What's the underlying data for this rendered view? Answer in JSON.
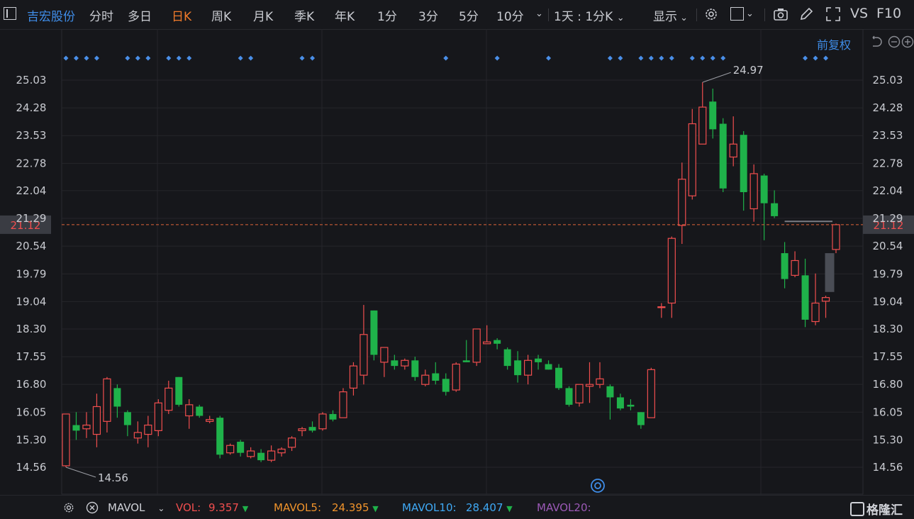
{
  "toolbar": {
    "stock_name": "吉宏股份",
    "tabs": [
      "分时",
      "多日",
      "日K",
      "周K",
      "月K",
      "季K",
      "年K",
      "1分",
      "3分",
      "5分",
      "10分"
    ],
    "active_tab": "日K",
    "period_select": "1天 : 1分K",
    "display_label": "显示",
    "vs_label": "VS",
    "f10_label": "F10"
  },
  "chart_header": {
    "adjust_label": "前复权"
  },
  "chart_data": {
    "type": "candlestick",
    "y_ticks": [
      25.03,
      24.28,
      23.53,
      22.78,
      22.04,
      21.29,
      20.54,
      19.79,
      19.04,
      18.3,
      17.55,
      16.8,
      16.05,
      15.3,
      14.56
    ],
    "y_tick_labels": [
      "25.03",
      "24.28",
      "23.53",
      "22.78",
      "22.04",
      "21.29",
      "20.54",
      "19.79",
      "19.04",
      "18.30",
      "17.55",
      "16.80",
      "16.05",
      "15.30",
      "14.56"
    ],
    "ylim": [
      14.25,
      25.6
    ],
    "current_price": 21.12,
    "current_price_label": "21.12",
    "max_label": "24.97",
    "min_label": "14.56",
    "candles": [
      {
        "o": 14.6,
        "h": 16.0,
        "l": 14.56,
        "c": 16.0
      },
      {
        "o": 15.7,
        "h": 16.05,
        "l": 15.3,
        "c": 15.55
      },
      {
        "o": 15.6,
        "h": 16.05,
        "l": 15.35,
        "c": 15.7
      },
      {
        "o": 15.45,
        "h": 16.55,
        "l": 15.1,
        "c": 16.2
      },
      {
        "o": 15.8,
        "h": 17.0,
        "l": 15.5,
        "c": 16.95
      },
      {
        "o": 16.7,
        "h": 16.8,
        "l": 15.9,
        "c": 16.2
      },
      {
        "o": 16.05,
        "h": 16.1,
        "l": 15.4,
        "c": 15.7
      },
      {
        "o": 15.35,
        "h": 15.8,
        "l": 15.2,
        "c": 15.5
      },
      {
        "o": 15.45,
        "h": 15.95,
        "l": 15.1,
        "c": 15.7
      },
      {
        "o": 15.55,
        "h": 16.4,
        "l": 15.4,
        "c": 16.3
      },
      {
        "o": 16.1,
        "h": 16.9,
        "l": 16.0,
        "c": 16.7
      },
      {
        "o": 17.0,
        "h": 17.0,
        "l": 16.2,
        "c": 16.25
      },
      {
        "o": 15.95,
        "h": 16.4,
        "l": 15.6,
        "c": 16.25
      },
      {
        "o": 16.2,
        "h": 16.25,
        "l": 15.9,
        "c": 15.95
      },
      {
        "o": 15.8,
        "h": 15.95,
        "l": 15.75,
        "c": 15.85
      },
      {
        "o": 15.9,
        "h": 15.95,
        "l": 14.8,
        "c": 14.9
      },
      {
        "o": 14.95,
        "h": 15.2,
        "l": 14.9,
        "c": 15.15
      },
      {
        "o": 15.25,
        "h": 15.3,
        "l": 14.85,
        "c": 14.95
      },
      {
        "o": 14.85,
        "h": 15.1,
        "l": 14.8,
        "c": 15.0
      },
      {
        "o": 14.95,
        "h": 15.05,
        "l": 14.7,
        "c": 14.75
      },
      {
        "o": 14.75,
        "h": 15.15,
        "l": 14.7,
        "c": 15.0
      },
      {
        "o": 14.95,
        "h": 15.1,
        "l": 14.85,
        "c": 15.05
      },
      {
        "o": 15.1,
        "h": 15.4,
        "l": 15.0,
        "c": 15.35
      },
      {
        "o": 15.55,
        "h": 15.65,
        "l": 15.4,
        "c": 15.6
      },
      {
        "o": 15.65,
        "h": 15.8,
        "l": 15.5,
        "c": 15.55
      },
      {
        "o": 15.6,
        "h": 16.05,
        "l": 15.55,
        "c": 16.0
      },
      {
        "o": 16.0,
        "h": 16.1,
        "l": 15.8,
        "c": 15.85
      },
      {
        "o": 15.9,
        "h": 16.7,
        "l": 15.9,
        "c": 16.6
      },
      {
        "o": 16.7,
        "h": 17.4,
        "l": 16.5,
        "c": 17.3
      },
      {
        "o": 17.05,
        "h": 18.95,
        "l": 16.8,
        "c": 18.15
      },
      {
        "o": 18.8,
        "h": 18.8,
        "l": 17.45,
        "c": 17.6
      },
      {
        "o": 17.4,
        "h": 17.8,
        "l": 17.0,
        "c": 17.8
      },
      {
        "o": 17.45,
        "h": 17.6,
        "l": 17.2,
        "c": 17.3
      },
      {
        "o": 17.3,
        "h": 17.5,
        "l": 17.2,
        "c": 17.45
      },
      {
        "o": 17.45,
        "h": 17.55,
        "l": 16.9,
        "c": 17.0
      },
      {
        "o": 16.8,
        "h": 17.2,
        "l": 16.75,
        "c": 17.05
      },
      {
        "o": 17.1,
        "h": 17.4,
        "l": 16.8,
        "c": 16.9
      },
      {
        "o": 16.95,
        "h": 17.1,
        "l": 16.5,
        "c": 16.6
      },
      {
        "o": 16.65,
        "h": 17.4,
        "l": 16.6,
        "c": 17.35
      },
      {
        "o": 17.45,
        "h": 18.0,
        "l": 17.4,
        "c": 17.4
      },
      {
        "o": 17.4,
        "h": 18.3,
        "l": 17.3,
        "c": 18.3
      },
      {
        "o": 17.9,
        "h": 18.4,
        "l": 17.9,
        "c": 17.95
      },
      {
        "o": 18.0,
        "h": 18.05,
        "l": 17.75,
        "c": 17.9
      },
      {
        "o": 17.75,
        "h": 17.8,
        "l": 17.2,
        "c": 17.3
      },
      {
        "o": 17.45,
        "h": 17.7,
        "l": 16.85,
        "c": 17.05
      },
      {
        "o": 17.05,
        "h": 17.6,
        "l": 16.8,
        "c": 17.45
      },
      {
        "o": 17.5,
        "h": 17.6,
        "l": 17.2,
        "c": 17.4
      },
      {
        "o": 17.35,
        "h": 17.45,
        "l": 17.2,
        "c": 17.2
      },
      {
        "o": 17.25,
        "h": 17.35,
        "l": 16.65,
        "c": 16.7
      },
      {
        "o": 16.7,
        "h": 16.75,
        "l": 16.2,
        "c": 16.25
      },
      {
        "o": 16.3,
        "h": 16.8,
        "l": 16.2,
        "c": 16.8
      },
      {
        "o": 16.75,
        "h": 17.4,
        "l": 16.3,
        "c": 16.8
      },
      {
        "o": 16.8,
        "h": 17.4,
        "l": 16.7,
        "c": 16.95
      },
      {
        "o": 16.75,
        "h": 16.8,
        "l": 15.85,
        "c": 16.45
      },
      {
        "o": 16.45,
        "h": 16.55,
        "l": 16.1,
        "c": 16.15
      },
      {
        "o": 16.25,
        "h": 16.4,
        "l": 16.1,
        "c": 16.2
      },
      {
        "o": 16.05,
        "h": 16.05,
        "l": 15.6,
        "c": 15.7
      },
      {
        "o": 15.9,
        "h": 17.25,
        "l": 15.9,
        "c": 17.2
      },
      {
        "o": 18.9,
        "h": 19.0,
        "l": 18.6,
        "c": 18.9
      },
      {
        "o": 19.0,
        "h": 20.8,
        "l": 18.6,
        "c": 20.75
      },
      {
        "o": 21.1,
        "h": 22.8,
        "l": 20.6,
        "c": 22.35
      },
      {
        "o": 21.9,
        "h": 24.25,
        "l": 21.8,
        "c": 23.85
      },
      {
        "o": 23.3,
        "h": 24.97,
        "l": 23.3,
        "c": 24.3
      },
      {
        "o": 24.45,
        "h": 24.8,
        "l": 23.45,
        "c": 23.7
      },
      {
        "o": 23.85,
        "h": 24.0,
        "l": 22.0,
        "c": 22.1
      },
      {
        "o": 22.95,
        "h": 24.05,
        "l": 22.7,
        "c": 23.3
      },
      {
        "o": 23.55,
        "h": 23.65,
        "l": 21.5,
        "c": 22.0
      },
      {
        "o": 21.55,
        "h": 22.75,
        "l": 21.2,
        "c": 22.5
      },
      {
        "o": 22.45,
        "h": 22.5,
        "l": 20.7,
        "c": 21.7
      },
      {
        "o": 21.7,
        "h": 22.05,
        "l": 21.3,
        "c": 21.35
      },
      {
        "o": 20.35,
        "h": 20.65,
        "l": 19.4,
        "c": 19.65
      },
      {
        "o": 19.75,
        "h": 20.4,
        "l": 19.7,
        "c": 20.15
      },
      {
        "o": 19.75,
        "h": 20.2,
        "l": 18.35,
        "c": 18.55
      },
      {
        "o": 18.5,
        "h": 19.8,
        "l": 18.4,
        "c": 19.0
      },
      {
        "o": 19.05,
        "h": 19.2,
        "l": 18.6,
        "c": 19.15
      },
      {
        "o": 20.45,
        "h": 21.15,
        "l": 20.35,
        "c": 21.12
      }
    ],
    "marker_candle_index": [
      0,
      1,
      2,
      3,
      6,
      7,
      8,
      10,
      11,
      12,
      17,
      18,
      23,
      24,
      37,
      42,
      47,
      53,
      54,
      56,
      57,
      58,
      59,
      61,
      62,
      63,
      64,
      72,
      73,
      74
    ]
  },
  "footer": {
    "indicator": "MAVOL",
    "vol_label": "VOL:",
    "vol_value": "9.357",
    "mavol5_label": "MAVOL5:",
    "mavol5_value": "24.395",
    "mavol10_label": "MAVOL10:",
    "mavol10_value": "28.407",
    "mavol20_label": "MAVOL20:",
    "logo_text": "格隆汇"
  },
  "colors": {
    "up": "#f04e4e",
    "down": "#1fb24a",
    "accent": "#f07a2a",
    "blue": "#3f8de8",
    "marker": "#4a8fe8",
    "mavol5": "#f0932b",
    "mavol10": "#3fa9f5",
    "mavol20": "#9b59b6"
  }
}
